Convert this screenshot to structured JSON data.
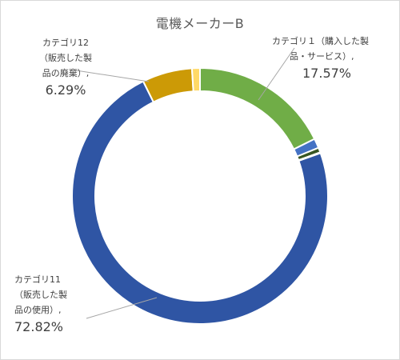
{
  "chart_data": {
    "type": "pie",
    "title": "電機メーカーB",
    "donut": true,
    "slices": [
      {
        "name": "カテゴリ1（購入した製品・サービス）",
        "value": 17.57,
        "color": "#70ad47"
      },
      {
        "name": "",
        "value": 1.2,
        "color": "#4472c4"
      },
      {
        "name": "",
        "value": 0.6,
        "color": "#375623"
      },
      {
        "name": "",
        "value": 0.1,
        "color": "#e2efda"
      },
      {
        "name": "カテゴリ11（販売した製品の使用）",
        "value": 72.82,
        "color": "#2f55a4"
      },
      {
        "name": "カテゴリ12（販売した製品の廃棄）",
        "value": 6.29,
        "color": "#cc9a06"
      },
      {
        "name": "",
        "value": 1.0,
        "color": "#ffd966"
      }
    ]
  },
  "labels": {
    "cat1": {
      "line1": "カテゴリ１（購入した製",
      "line2": "品・サービス）,",
      "pct": "17.57%"
    },
    "cat12": {
      "line1": "カテゴリ12",
      "line2": "（販売した製",
      "line3": "品の廃棄）,",
      "pct": "6.29%"
    },
    "cat11": {
      "line1": "カテゴリ11",
      "line2": "（販売した製",
      "line3": "品の使用）,",
      "pct": "72.82%"
    }
  }
}
